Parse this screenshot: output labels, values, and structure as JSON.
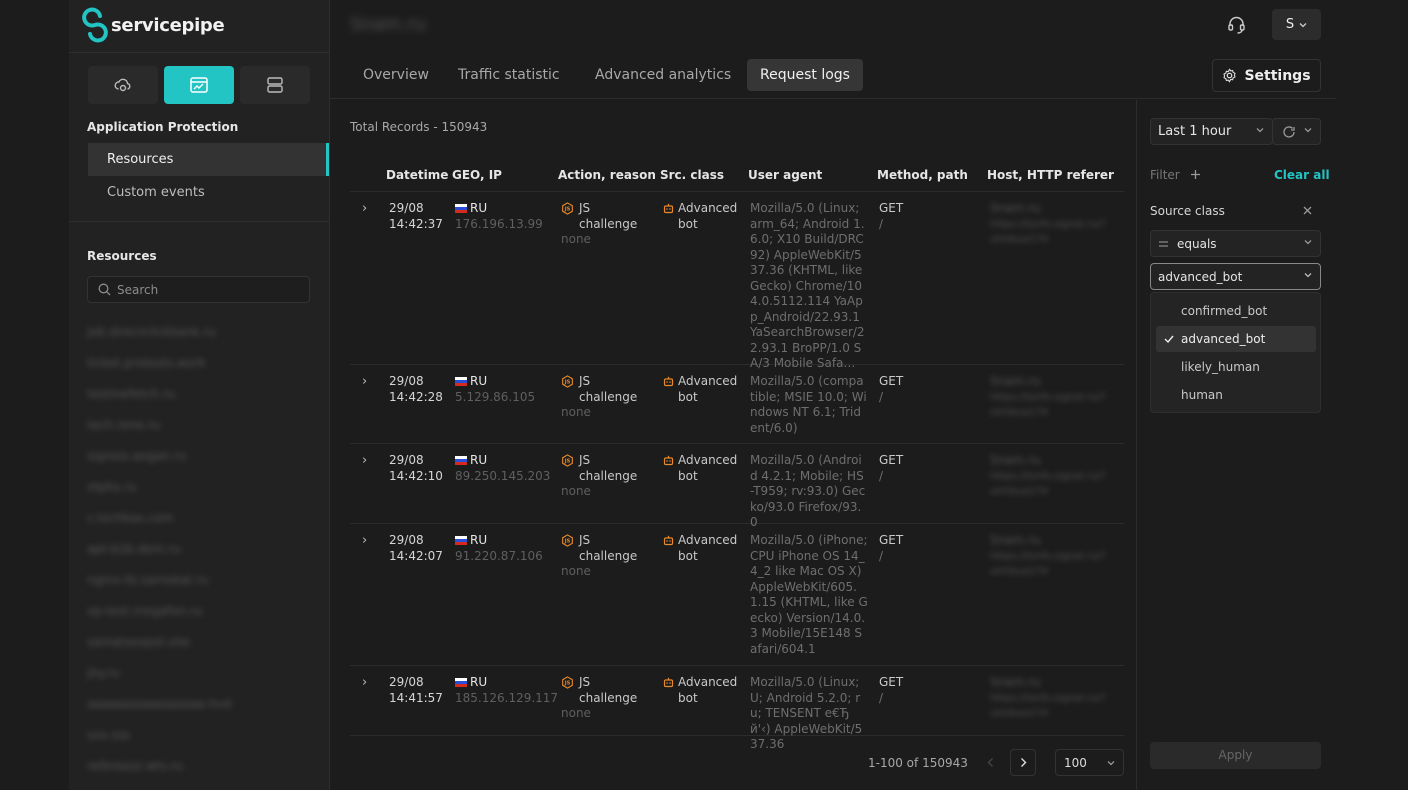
{
  "app": {
    "brand": "servicepipe",
    "resource_title": "Snam.ru",
    "user_initial": "S"
  },
  "sidebar": {
    "section_title": "Application Protection",
    "nav": [
      {
        "label": "Resources",
        "active": true
      },
      {
        "label": "Custom events",
        "active": false
      }
    ],
    "resources_title": "Resources",
    "search_placeholder": "Search",
    "resources": [
      "job.directclickbank.ru",
      "ticket.protests.work",
      "testinefetch.ru",
      "tech.rene.ru",
      "signois.aogan.ru",
      "xtphs.ru",
      "c.tochkas.com",
      "apt-b2b.dom.ru",
      "nginx-tb.samokat.ru",
      "xp-test.megafon.ru",
      "samatsexpot.site",
      "jhy.ru",
      "aaaaaaaaaaaaaaaa-hvd",
      "sxx.sss",
      "relbreezz.wts.ru"
    ]
  },
  "tabs": [
    {
      "label": "Overview",
      "active": false
    },
    {
      "label": "Traffic statistic",
      "active": false
    },
    {
      "label": "Advanced analytics",
      "active": false
    },
    {
      "label": "Request logs",
      "active": true
    }
  ],
  "settings_label": "Settings",
  "logs": {
    "total_records": "Total Records - 150943",
    "columns": [
      "Datetime",
      "GEO, IP",
      "Action, reason",
      "Src. class",
      "User agent",
      "Method, path",
      "Host, HTTP referer"
    ],
    "rows": [
      {
        "date": "29/08",
        "time": "14:42:37",
        "country": "RU",
        "ip": "176.196.13.99",
        "action1": "JS",
        "action2": "challenge",
        "reason": "none",
        "src1": "Advanced",
        "src2": "bot",
        "ua": "Mozilla/5.0 (Linux; arm_64; Android 1.6.0; X10 Build/DRC92) AppleWebKit/537.36 (KHTML, like Gecko) Chrome/104.0.5112.114 YaApp_Android/22.93.1 YaSearchBrowser/22.93.1 BroPP/1.0 SA/3 Mobile Safa…",
        "method": "GET",
        "path": "/",
        "host": "Snam.ru",
        "referer": "https://tsnfo.signal.ru/?utmbua174"
      },
      {
        "date": "29/08",
        "time": "14:42:28",
        "country": "RU",
        "ip": "5.129.86.105",
        "action1": "JS",
        "action2": "challenge",
        "reason": "none",
        "src1": "Advanced",
        "src2": "bot",
        "ua": "Mozilla/5.0 (compatible; MSIE 10.0; Windows NT 6.1; Trident/6.0)",
        "method": "GET",
        "path": "/",
        "host": "Snam.ru",
        "referer": "https://tsnfo.signal.ru/?utmbua174"
      },
      {
        "date": "29/08",
        "time": "14:42:10",
        "country": "RU",
        "ip": "89.250.145.203",
        "action1": "JS",
        "action2": "challenge",
        "reason": "none",
        "src1": "Advanced",
        "src2": "bot",
        "ua": "Mozilla/5.0 (Android 4.2.1; Mobile; HS-T959; rv:93.0) Gecko/93.0 Firefox/93.0",
        "method": "GET",
        "path": "/",
        "host": "Snam.ru",
        "referer": "https://tsnfo.signal.ru/?utmbua174"
      },
      {
        "date": "29/08",
        "time": "14:42:07",
        "country": "RU",
        "ip": "91.220.87.106",
        "action1": "JS",
        "action2": "challenge",
        "reason": "none",
        "src1": "Advanced",
        "src2": "bot",
        "ua": "Mozilla/5.0 (iPhone; CPU iPhone OS 14_4_2 like Mac OS X) AppleWebKit/605.1.15 (KHTML, like Gecko) Version/14.0.3 Mobile/15E148 Safari/604.1",
        "method": "GET",
        "path": "/",
        "host": "Snam.ru",
        "referer": "https://tsnfo.signal.ru/?utmbua174"
      },
      {
        "date": "29/08",
        "time": "14:41:57",
        "country": "RU",
        "ip": "185.126.129.117",
        "action1": "JS",
        "action2": "challenge",
        "reason": "none",
        "src1": "Advanced",
        "src2": "bot",
        "ua": "Mozilla/5.0 (Linux; U; Android 5.2.0; ru; TENSENT e€Ђй'‹) AppleWebKit/537.36",
        "method": "GET",
        "path": "/",
        "host": "Snam.ru",
        "referer": "https://tsnfo.signal.ru/?utmbua174"
      }
    ],
    "pagination": {
      "range": "1-100 of 150943",
      "page_size": "100"
    }
  },
  "filter": {
    "time_range": "Last 1 hour",
    "filter_label": "Filter",
    "clear_all": "Clear all",
    "field_label": "Source class",
    "operator": "equals",
    "value": "advanced_bot",
    "options": [
      {
        "label": "confirmed_bot",
        "selected": false
      },
      {
        "label": "advanced_bot",
        "selected": true
      },
      {
        "label": "likely_human",
        "selected": false
      },
      {
        "label": "human",
        "selected": false
      }
    ],
    "apply_label": "Apply"
  },
  "colors": {
    "accent": "#22c4c4",
    "warning": "#e8892b",
    "bg": "#1c1c1c",
    "panel": "#222222"
  }
}
